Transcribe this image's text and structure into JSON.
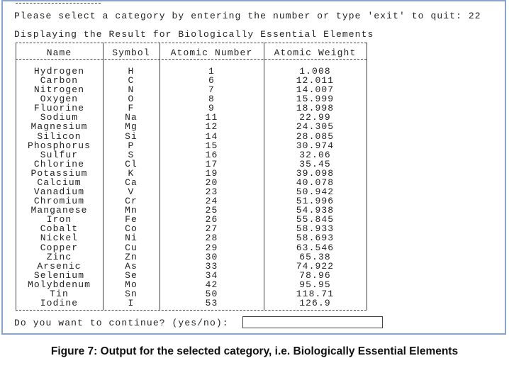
{
  "console": {
    "prompt": "Please select a category by entering the number or type 'exit' to quit: 22",
    "heading": "Displaying the Result for Biologically Essential Elements",
    "continue_prompt": "Do you want to continue? (yes/no):"
  },
  "table": {
    "columns": [
      "Name",
      "Symbol",
      "Atomic Number",
      "Atomic Weight"
    ],
    "rows": [
      [
        "Hydrogen",
        "H",
        "1",
        "1.008"
      ],
      [
        "Carbon",
        "C",
        "6",
        "12.011"
      ],
      [
        "Nitrogen",
        "N",
        "7",
        "14.007"
      ],
      [
        "Oxygen",
        "O",
        "8",
        "15.999"
      ],
      [
        "Fluorine",
        "F",
        "9",
        "18.998"
      ],
      [
        "Sodium",
        "Na",
        "11",
        "22.99"
      ],
      [
        "Magnesium",
        "Mg",
        "12",
        "24.305"
      ],
      [
        "Silicon",
        "Si",
        "14",
        "28.085"
      ],
      [
        "Phosphorus",
        "P",
        "15",
        "30.974"
      ],
      [
        "Sulfur",
        "S",
        "16",
        "32.06"
      ],
      [
        "Chlorine",
        "Cl",
        "17",
        "35.45"
      ],
      [
        "Potassium",
        "K",
        "19",
        "39.098"
      ],
      [
        "Calcium",
        "Ca",
        "20",
        "40.078"
      ],
      [
        "Vanadium",
        "V",
        "23",
        "50.942"
      ],
      [
        "Chromium",
        "Cr",
        "24",
        "51.996"
      ],
      [
        "Manganese",
        "Mn",
        "25",
        "54.938"
      ],
      [
        "Iron",
        "Fe",
        "26",
        "55.845"
      ],
      [
        "Cobalt",
        "Co",
        "27",
        "58.933"
      ],
      [
        "Nickel",
        "Ni",
        "28",
        "58.693"
      ],
      [
        "Copper",
        "Cu",
        "29",
        "63.546"
      ],
      [
        "Zinc",
        "Zn",
        "30",
        "65.38"
      ],
      [
        "Arsenic",
        "As",
        "33",
        "74.922"
      ],
      [
        "Selenium",
        "Se",
        "34",
        "78.96"
      ],
      [
        "Molybdenum",
        "Mo",
        "42",
        "95.95"
      ],
      [
        "Tin",
        "Sn",
        "50",
        "118.71"
      ],
      [
        "Iodine",
        "I",
        "53",
        "126.9"
      ]
    ]
  },
  "caption": "Figure 7: Output for the selected category, i.e. Biologically Essential Elements"
}
